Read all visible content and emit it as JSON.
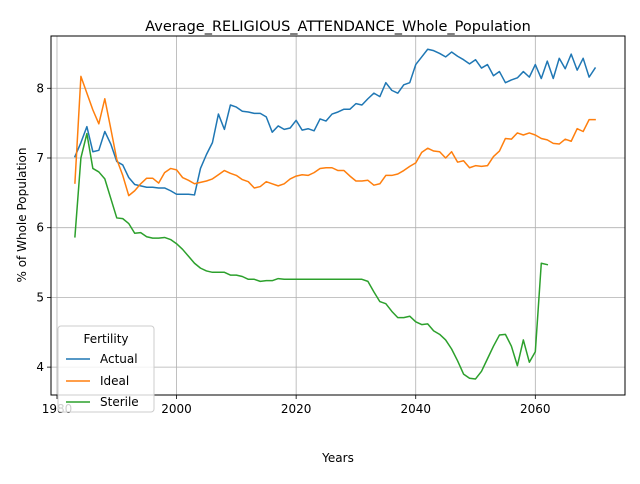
{
  "chart_data": {
    "type": "line",
    "title": "Average_RELIGIOUS_ATTENDANCE_Whole_Population",
    "xlabel": "Years",
    "ylabel": "% of Whole Population",
    "xlim": [
      1979,
      2075
    ],
    "ylim": [
      3.6,
      8.75
    ],
    "xticks": [
      1980,
      2000,
      2020,
      2040,
      2060
    ],
    "yticks": [
      4,
      5,
      6,
      7,
      8
    ],
    "grid": true,
    "legend": {
      "title": "Fertility",
      "placement": "lower-left"
    },
    "series": [
      {
        "name": "Actual",
        "color": "#1f77b4",
        "x": [
          1983,
          1984,
          1985,
          1986,
          1987,
          1988,
          1989,
          1990,
          1991,
          1992,
          1993,
          1994,
          1995,
          1996,
          1997,
          1998,
          1999,
          2000,
          2001,
          2002,
          2003,
          2004,
          2005,
          2006,
          2007,
          2008,
          2009,
          2010,
          2011,
          2012,
          2013,
          2014,
          2015,
          2016,
          2017,
          2018,
          2019,
          2020,
          2021,
          2022,
          2023,
          2024,
          2025,
          2026,
          2027,
          2028,
          2029,
          2030,
          2031,
          2032,
          2033,
          2034,
          2035,
          2036,
          2037,
          2038,
          2039,
          2040,
          2041,
          2042,
          2043,
          2044,
          2045,
          2046,
          2047,
          2048,
          2049,
          2050,
          2051,
          2052,
          2053,
          2054,
          2055,
          2056,
          2057,
          2058,
          2059,
          2060,
          2061,
          2062,
          2063,
          2064,
          2065,
          2066,
          2067,
          2068,
          2069,
          2070
        ],
        "values": [
          7.02,
          7.22,
          7.45,
          7.09,
          7.11,
          7.38,
          7.2,
          6.95,
          6.9,
          6.72,
          6.62,
          6.6,
          6.58,
          6.58,
          6.57,
          6.57,
          6.53,
          6.48,
          6.48,
          6.48,
          6.47,
          6.85,
          7.05,
          7.22,
          7.63,
          7.41,
          7.76,
          7.73,
          7.67,
          7.66,
          7.64,
          7.64,
          7.59,
          7.37,
          7.46,
          7.41,
          7.43,
          7.54,
          7.4,
          7.42,
          7.39,
          7.56,
          7.53,
          7.63,
          7.66,
          7.7,
          7.7,
          7.78,
          7.76,
          7.85,
          7.93,
          7.88,
          8.08,
          7.97,
          7.93,
          8.05,
          8.08,
          8.34,
          8.45,
          8.56,
          8.54,
          8.5,
          8.45,
          8.52,
          8.46,
          8.41,
          8.35,
          8.41,
          8.29,
          8.34,
          8.18,
          8.24,
          8.08,
          8.12,
          8.15,
          8.24,
          8.16,
          8.34,
          8.14,
          8.39,
          8.14,
          8.43,
          8.28,
          8.49,
          8.26,
          8.43,
          8.16,
          8.29
        ]
      },
      {
        "name": "Ideal",
        "color": "#ff7f0e",
        "x": [
          1983,
          1984,
          1985,
          1986,
          1987,
          1988,
          1989,
          1990,
          1991,
          1992,
          1993,
          1994,
          1995,
          1996,
          1997,
          1998,
          1999,
          2000,
          2001,
          2002,
          2003,
          2004,
          2005,
          2006,
          2007,
          2008,
          2009,
          2010,
          2011,
          2012,
          2013,
          2014,
          2015,
          2016,
          2017,
          2018,
          2019,
          2020,
          2021,
          2022,
          2023,
          2024,
          2025,
          2026,
          2027,
          2028,
          2029,
          2030,
          2031,
          2032,
          2033,
          2034,
          2035,
          2036,
          2037,
          2038,
          2039,
          2040,
          2041,
          2042,
          2043,
          2044,
          2045,
          2046,
          2047,
          2048,
          2049,
          2050,
          2051,
          2052,
          2053,
          2054,
          2055,
          2056,
          2057,
          2058,
          2059,
          2060,
          2061,
          2062,
          2063,
          2064,
          2065,
          2066,
          2067,
          2068,
          2069,
          2070
        ],
        "values": [
          6.64,
          8.17,
          7.93,
          7.69,
          7.49,
          7.85,
          7.42,
          6.98,
          6.75,
          6.46,
          6.53,
          6.63,
          6.71,
          6.71,
          6.64,
          6.79,
          6.85,
          6.83,
          6.72,
          6.68,
          6.63,
          6.65,
          6.67,
          6.7,
          6.76,
          6.82,
          6.78,
          6.75,
          6.69,
          6.66,
          6.57,
          6.59,
          6.66,
          6.63,
          6.6,
          6.63,
          6.7,
          6.74,
          6.76,
          6.75,
          6.79,
          6.85,
          6.86,
          6.86,
          6.82,
          6.82,
          6.74,
          6.67,
          6.67,
          6.68,
          6.61,
          6.63,
          6.75,
          6.75,
          6.77,
          6.82,
          6.88,
          6.93,
          7.08,
          7.14,
          7.1,
          7.09,
          7.0,
          7.09,
          6.94,
          6.96,
          6.86,
          6.89,
          6.88,
          6.89,
          7.02,
          7.1,
          7.28,
          7.27,
          7.36,
          7.33,
          7.36,
          7.33,
          7.28,
          7.26,
          7.21,
          7.2,
          7.27,
          7.24,
          7.42,
          7.38,
          7.55,
          7.55
        ]
      },
      {
        "name": "Sterile",
        "color": "#2ca02c",
        "x": [
          1983,
          1984,
          1985,
          1986,
          1987,
          1988,
          1989,
          1990,
          1991,
          1992,
          1993,
          1994,
          1995,
          1996,
          1997,
          1998,
          1999,
          2000,
          2001,
          2002,
          2003,
          2004,
          2005,
          2006,
          2007,
          2008,
          2009,
          2010,
          2011,
          2012,
          2013,
          2014,
          2015,
          2016,
          2017,
          2018,
          2019,
          2020,
          2021,
          2022,
          2023,
          2024,
          2025,
          2026,
          2027,
          2028,
          2029,
          2030,
          2031,
          2032,
          2033,
          2034,
          2035,
          2036,
          2037,
          2038,
          2039,
          2040,
          2041,
          2042,
          2043,
          2044,
          2045,
          2046,
          2047,
          2048,
          2049,
          2050,
          2051,
          2052,
          2053,
          2054,
          2055,
          2056,
          2057,
          2058,
          2059,
          2060,
          2061,
          2062
        ],
        "values": [
          5.87,
          7.0,
          7.35,
          6.85,
          6.8,
          6.7,
          6.42,
          6.14,
          6.13,
          6.06,
          5.92,
          5.93,
          5.87,
          5.85,
          5.85,
          5.86,
          5.83,
          5.77,
          5.69,
          5.59,
          5.49,
          5.42,
          5.38,
          5.36,
          5.36,
          5.36,
          5.32,
          5.32,
          5.3,
          5.26,
          5.26,
          5.23,
          5.24,
          5.24,
          5.27,
          5.26,
          5.26,
          5.26,
          5.26,
          5.26,
          5.26,
          5.26,
          5.26,
          5.26,
          5.26,
          5.26,
          5.26,
          5.26,
          5.26,
          5.23,
          5.08,
          4.94,
          4.91,
          4.8,
          4.71,
          4.71,
          4.73,
          4.65,
          4.61,
          4.62,
          4.52,
          4.47,
          4.39,
          4.26,
          4.09,
          3.9,
          3.84,
          3.83,
          3.94,
          4.12,
          4.3,
          4.46,
          4.47,
          4.3,
          4.02,
          4.39,
          4.07,
          4.22,
          5.49,
          5.47
        ]
      }
    ]
  }
}
